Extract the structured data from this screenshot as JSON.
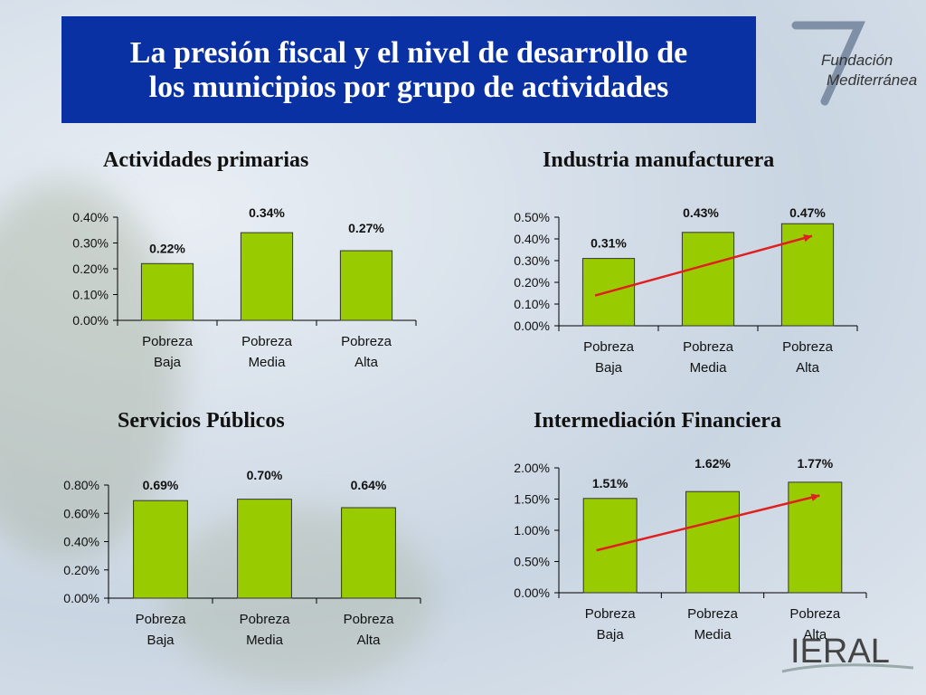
{
  "slide": {
    "title_line1": "La presión fiscal y el nivel de desarrollo de",
    "title_line2": "los municipios por grupo de actividades",
    "logo_top": {
      "line1": "Fundación",
      "line2": "Mediterránea"
    },
    "logo_bottom": "IERAL"
  },
  "colors": {
    "bar": "#99cc00",
    "bar_stroke": "#333333",
    "trend": "#e02020",
    "title_bg": "#0a31a3"
  },
  "chart_data": [
    {
      "type": "bar",
      "title": "Actividades primarias",
      "categories": [
        [
          "Pobreza",
          "Baja"
        ],
        [
          "Pobreza",
          "Media"
        ],
        [
          "Pobreza",
          "Alta"
        ]
      ],
      "values": [
        0.22,
        0.34,
        0.27
      ],
      "value_labels": [
        "0.22%",
        "0.34%",
        "0.27%"
      ],
      "yticks": [
        "0.00%",
        "0.10%",
        "0.20%",
        "0.30%",
        "0.40%"
      ],
      "ylim": [
        0,
        0.4
      ],
      "trend": false
    },
    {
      "type": "bar",
      "title": "Industria manufacturera",
      "categories": [
        [
          "Pobreza",
          "Baja"
        ],
        [
          "Pobreza",
          "Media"
        ],
        [
          "Pobreza",
          "Alta"
        ]
      ],
      "values": [
        0.31,
        0.43,
        0.47
      ],
      "value_labels": [
        "0.31%",
        "0.43%",
        "0.47%"
      ],
      "yticks": [
        "0.00%",
        "0.10%",
        "0.20%",
        "0.30%",
        "0.40%",
        "0.50%"
      ],
      "ylim": [
        0,
        0.5
      ],
      "trend": true
    },
    {
      "type": "bar",
      "title": "Servicios Públicos",
      "categories": [
        [
          "Pobreza",
          "Baja"
        ],
        [
          "Pobreza",
          "Media"
        ],
        [
          "Pobreza",
          "Alta"
        ]
      ],
      "values": [
        0.69,
        0.7,
        0.64
      ],
      "value_labels": [
        "0.69%",
        "0.70%",
        "0.64%"
      ],
      "yticks": [
        "0.00%",
        "0.20%",
        "0.40%",
        "0.60%",
        "0.80%"
      ],
      "ylim": [
        0,
        0.8
      ],
      "trend": false
    },
    {
      "type": "bar",
      "title": "Intermediación Financiera",
      "categories": [
        [
          "Pobreza",
          "Baja"
        ],
        [
          "Pobreza",
          "Media"
        ],
        [
          "Pobreza",
          "Alta"
        ]
      ],
      "values": [
        1.51,
        1.62,
        1.77
      ],
      "value_labels": [
        "1.51%",
        "1.62%",
        "1.77%"
      ],
      "yticks": [
        "0.00%",
        "0.50%",
        "1.00%",
        "1.50%",
        "2.00%"
      ],
      "ylim": [
        0,
        2.0
      ],
      "trend": true
    }
  ]
}
